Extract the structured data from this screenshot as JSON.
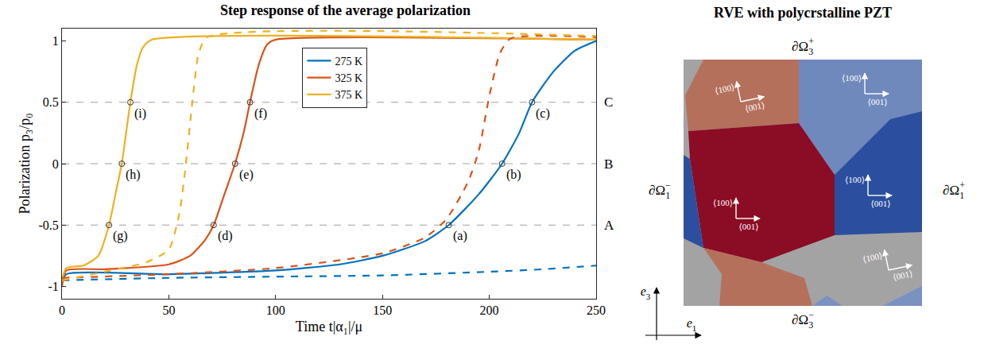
{
  "chart_data": {
    "type": "line",
    "title": "Step response of the average polarization",
    "x_label": "Time t|α₁|/μ",
    "y_label": "Polarization p₃/p₀",
    "xlim": [
      0,
      250
    ],
    "xticks": [
      0,
      50,
      100,
      150,
      200,
      250
    ],
    "ylim": [
      -1.1,
      1.1
    ],
    "yticks": [
      -1,
      -0.5,
      0,
      0.5,
      1
    ],
    "grid": false,
    "legend": "upper center",
    "series": [
      {
        "name": "275 K",
        "color": "#0072BD",
        "line_style": "solid",
        "x": [
          0,
          2,
          50,
          100,
          130,
          150,
          170,
          181,
          195,
          206,
          214,
          220,
          230,
          240,
          250
        ],
        "values": [
          -0.97,
          -0.9,
          -0.9,
          -0.87,
          -0.82,
          -0.75,
          -0.63,
          -0.5,
          -0.25,
          0,
          0.25,
          0.5,
          0.75,
          0.92,
          1.0
        ]
      },
      {
        "name": "325 K",
        "color": "#D95319",
        "line_style": "solid",
        "x": [
          0,
          2,
          20,
          50,
          60,
          67,
          71,
          76,
          81,
          85,
          88,
          92,
          96,
          100,
          250
        ],
        "values": [
          -1.0,
          -0.87,
          -0.86,
          -0.82,
          -0.75,
          -0.62,
          -0.5,
          -0.25,
          0,
          0.25,
          0.5,
          0.8,
          0.97,
          1.01,
          1.01
        ]
      },
      {
        "name": "375 K",
        "color": "#EDB120",
        "line_style": "solid",
        "x": [
          0,
          2,
          10,
          17,
          22,
          25,
          28,
          30,
          32,
          35,
          38,
          42,
          250
        ],
        "values": [
          -0.95,
          -0.85,
          -0.83,
          -0.75,
          -0.5,
          -0.25,
          0,
          0.25,
          0.5,
          0.8,
          0.95,
          1.01,
          1.01
        ]
      },
      {
        "name": "275 K",
        "color": "#0072BD",
        "line_style": "dashed",
        "x": [
          0,
          50,
          100,
          150,
          200,
          225,
          250
        ],
        "values": [
          -0.95,
          -0.93,
          -0.92,
          -0.91,
          -0.88,
          -0.86,
          -0.83
        ]
      },
      {
        "name": "325 K",
        "color": "#D95319",
        "line_style": "dashed",
        "x": [
          0,
          50,
          100,
          150,
          170,
          180,
          190,
          195,
          200,
          205,
          210,
          250
        ],
        "values": [
          -0.93,
          -0.9,
          -0.85,
          -0.73,
          -0.6,
          -0.45,
          -0.15,
          0.1,
          0.55,
          0.9,
          1.02,
          1.03
        ]
      },
      {
        "name": "375 K",
        "color": "#EDB120",
        "line_style": "dashed",
        "x": [
          0,
          20,
          40,
          50,
          55,
          58,
          61,
          64,
          68,
          250
        ],
        "values": [
          -0.95,
          -0.88,
          -0.8,
          -0.7,
          -0.4,
          0,
          0.5,
          0.9,
          1.03,
          1.04
        ]
      }
    ],
    "reference_lines": [
      {
        "y": -0.5,
        "label": "A"
      },
      {
        "y": 0,
        "label": "B"
      },
      {
        "y": 0.5,
        "label": "C"
      }
    ],
    "points": [
      {
        "x": 181,
        "y": -0.5,
        "label": "(a)"
      },
      {
        "x": 206,
        "y": 0,
        "label": "(b)"
      },
      {
        "x": 220,
        "y": 0.5,
        "label": "(c)"
      },
      {
        "x": 71,
        "y": -0.5,
        "label": "(d)"
      },
      {
        "x": 81,
        "y": 0,
        "label": "(e)"
      },
      {
        "x": 88,
        "y": 0.5,
        "label": "(f)"
      },
      {
        "x": 22,
        "y": -0.5,
        "label": "(g)"
      },
      {
        "x": 28,
        "y": 0,
        "label": "(h)"
      },
      {
        "x": 32,
        "y": 0.5,
        "label": "(i)"
      }
    ]
  },
  "diagram": {
    "title": "RVE with polycrstalline PZT",
    "boundaries": {
      "top": {
        "base": "∂Ω",
        "sub": "3",
        "sup": "+"
      },
      "bottom": {
        "base": "∂Ω",
        "sub": "3",
        "sup": "−"
      },
      "left": {
        "base": "∂Ω",
        "sub": "1",
        "sup": "−"
      },
      "right": {
        "base": "∂Ω",
        "sub": "1",
        "sup": "+"
      }
    },
    "axes": {
      "vertical": {
        "base": "e",
        "sub": "3"
      },
      "horizontal": {
        "base": "e",
        "sub": "1"
      }
    },
    "grain_orientations": [
      {
        "label_1": "⟨100⟩",
        "label_2": "⟨001⟩"
      },
      {
        "label_1": "⟨100⟩",
        "label_2": "⟨001⟩"
      },
      {
        "label_1": "⟨100⟩",
        "label_2": "⟨001⟩"
      },
      {
        "label_1": "⟨100⟩",
        "label_2": "⟨001⟩"
      },
      {
        "label_1": "⟨100⟩",
        "label_2": "⟨001⟩"
      }
    ]
  }
}
